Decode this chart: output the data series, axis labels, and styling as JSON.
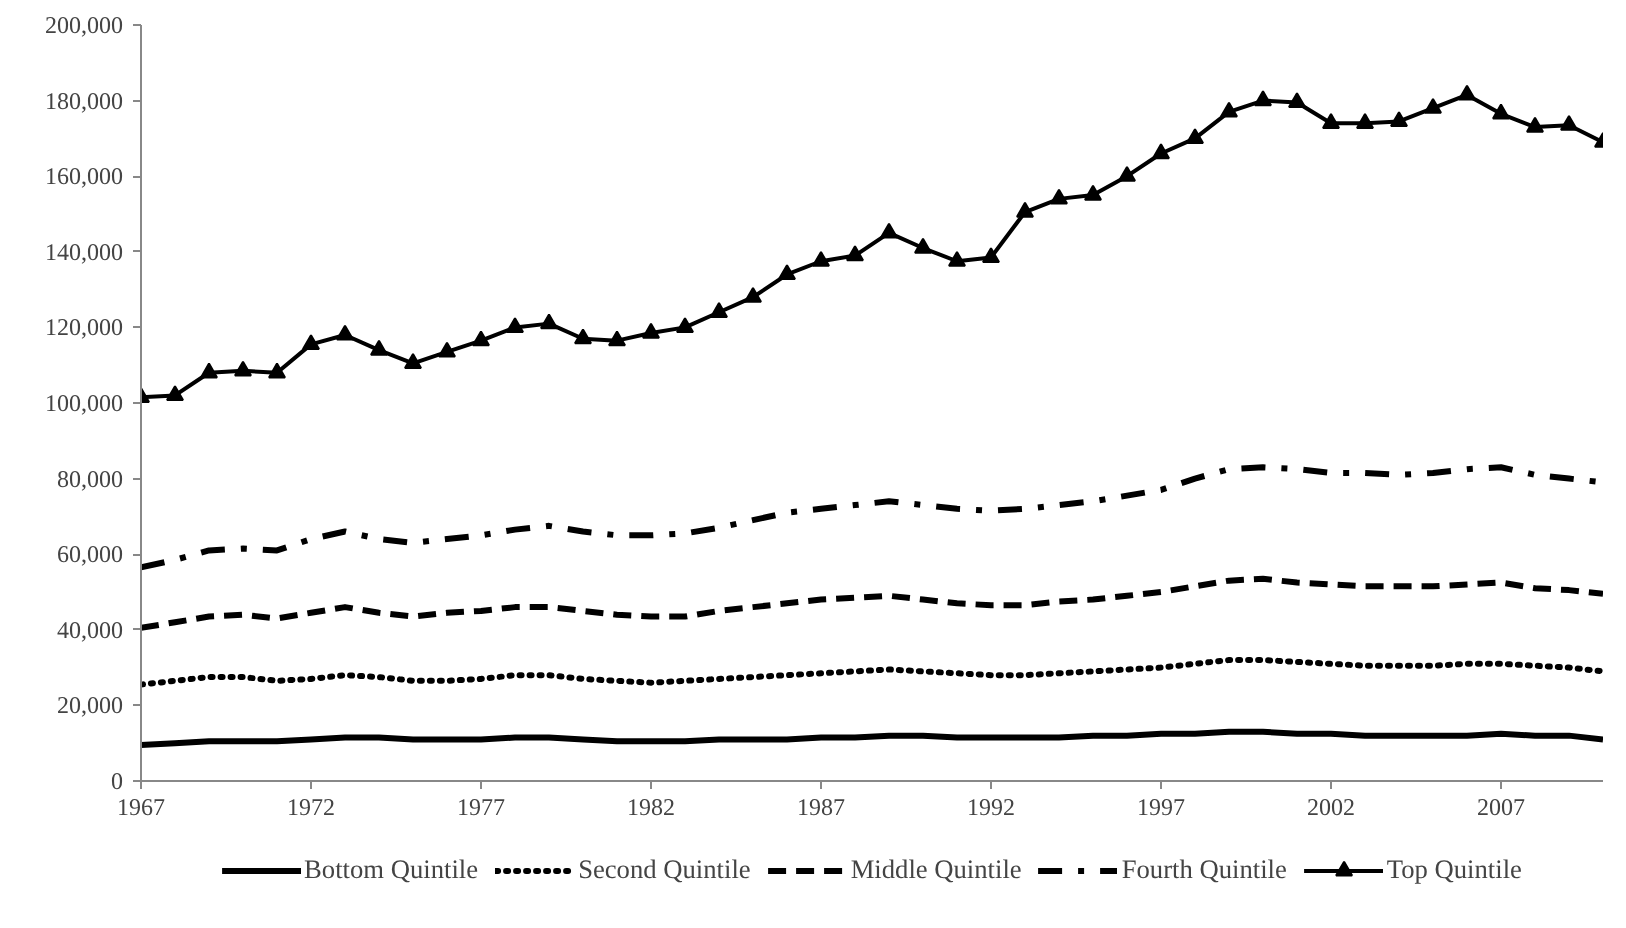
{
  "chart_data": {
    "type": "line",
    "x": [
      1967,
      1968,
      1969,
      1970,
      1971,
      1972,
      1973,
      1974,
      1975,
      1976,
      1977,
      1978,
      1979,
      1980,
      1981,
      1982,
      1983,
      1984,
      1985,
      1986,
      1987,
      1988,
      1989,
      1990,
      1991,
      1992,
      1993,
      1994,
      1995,
      1996,
      1997,
      1998,
      1999,
      2000,
      2001,
      2002,
      2003,
      2004,
      2005,
      2006,
      2007,
      2008,
      2009,
      2010
    ],
    "series": [
      {
        "name": "Bottom Quintile",
        "color": "#000000",
        "line_style": "solid",
        "marker": "none",
        "values": [
          9500,
          10000,
          10500,
          10500,
          10500,
          11000,
          11500,
          11500,
          11000,
          11000,
          11000,
          11500,
          11500,
          11000,
          10500,
          10500,
          10500,
          11000,
          11000,
          11000,
          11500,
          11500,
          12000,
          12000,
          11500,
          11500,
          11500,
          11500,
          12000,
          12000,
          12500,
          12500,
          13000,
          13000,
          12500,
          12500,
          12000,
          12000,
          12000,
          12000,
          12500,
          12000,
          12000,
          11000
        ]
      },
      {
        "name": "Second Quintile",
        "color": "#000000",
        "line_style": "dotted",
        "marker": "none",
        "values": [
          25500,
          26500,
          27500,
          27500,
          26500,
          27000,
          28000,
          27500,
          26500,
          26500,
          27000,
          28000,
          28000,
          27000,
          26500,
          26000,
          26500,
          27000,
          27500,
          28000,
          28500,
          29000,
          29500,
          29000,
          28500,
          28000,
          28000,
          28500,
          29000,
          29500,
          30000,
          31000,
          32000,
          32000,
          31500,
          31000,
          30500,
          30500,
          30500,
          31000,
          31000,
          30500,
          30000,
          29000
        ]
      },
      {
        "name": "Middle Quintile",
        "color": "#000000",
        "line_style": "dashed",
        "marker": "none",
        "values": [
          40500,
          42000,
          43500,
          44000,
          43000,
          44500,
          46000,
          44500,
          43500,
          44500,
          45000,
          46000,
          46000,
          45000,
          44000,
          43500,
          43500,
          45000,
          46000,
          47000,
          48000,
          48500,
          49000,
          48000,
          47000,
          46500,
          46500,
          47500,
          48000,
          49000,
          50000,
          51500,
          53000,
          53500,
          52500,
          52000,
          51500,
          51500,
          51500,
          52000,
          52500,
          51000,
          50500,
          49500
        ]
      },
      {
        "name": "Fourth Quintile",
        "color": "#000000",
        "line_style": "dashdot",
        "marker": "none",
        "values": [
          56500,
          58500,
          61000,
          61500,
          61000,
          64000,
          66000,
          64000,
          63000,
          64000,
          65000,
          66500,
          67500,
          66000,
          65000,
          65000,
          65500,
          67000,
          69000,
          71000,
          72000,
          73000,
          74000,
          73000,
          72000,
          71500,
          72000,
          73000,
          74000,
          75500,
          77000,
          80000,
          82500,
          83000,
          82500,
          81500,
          81500,
          81000,
          81500,
          82500,
          83000,
          81000,
          80000,
          79000
        ]
      },
      {
        "name": "Top Quintile",
        "color": "#000000",
        "line_style": "solid",
        "marker": "triangle",
        "values": [
          101500,
          102000,
          108000,
          108500,
          108000,
          115500,
          118000,
          114000,
          110500,
          113500,
          116500,
          120000,
          121000,
          117000,
          116500,
          118500,
          120000,
          124000,
          128000,
          134000,
          137500,
          139000,
          145000,
          141000,
          137500,
          138500,
          150500,
          154000,
          155000,
          160000,
          166000,
          170000,
          177000,
          180000,
          179500,
          174000,
          174000,
          174500,
          178000,
          181500,
          176500,
          173000,
          173500,
          169000
        ]
      }
    ],
    "xlim": [
      1967,
      2010
    ],
    "xticks": [
      1967,
      1972,
      1977,
      1982,
      1987,
      1992,
      1997,
      2002,
      2007
    ],
    "ylim": [
      0,
      200000
    ],
    "yticks": [
      {
        "value": 0,
        "label": "0"
      },
      {
        "value": 20000,
        "label": "20,000"
      },
      {
        "value": 40000,
        "label": "40,000"
      },
      {
        "value": 60000,
        "label": "60,000"
      },
      {
        "value": 80000,
        "label": "80,000"
      },
      {
        "value": 100000,
        "label": "100,000"
      },
      {
        "value": 120000,
        "label": "120,000"
      },
      {
        "value": 140000,
        "label": "140,000"
      },
      {
        "value": 160000,
        "label": "160,000"
      },
      {
        "value": 180000,
        "label": "180,000"
      },
      {
        "value": 200000,
        "label": "200,000"
      }
    ],
    "grid": false,
    "legend": "bottom"
  }
}
